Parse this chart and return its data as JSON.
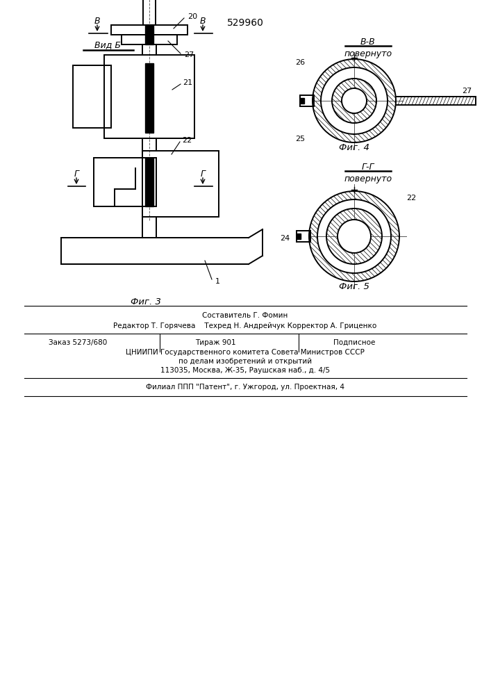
{
  "patent_number": "529960",
  "bg_color": "#ffffff",
  "line_color": "#000000",
  "fig3_label": "Фиг. 3",
  "fig4_label": "Фиг. 4",
  "fig5_label": "Фиг. 5",
  "vid_b_label": "Вид Б",
  "bb_label": "В-В",
  "bb_sub": "повернуто",
  "gg_label": "Г-Г",
  "gg_sub": "повернуто",
  "footer_line1": "Составитель Г. Фомин",
  "footer_line2": "Редактор Т. Горячева    Техред Н. Андрейчук Корректор А. Гриценко",
  "footer_line4": "ЦНИИПИ Государственного комитета Совета Министров СССР",
  "footer_line5": "по делам изобретений и открытий",
  "footer_line6": "113035, Москва, Ж-35, Раушская наб., д. 4/5",
  "footer_line7": "Филиал ППП \"Патент\", г. Ужгород, ул. Проектная, 4"
}
